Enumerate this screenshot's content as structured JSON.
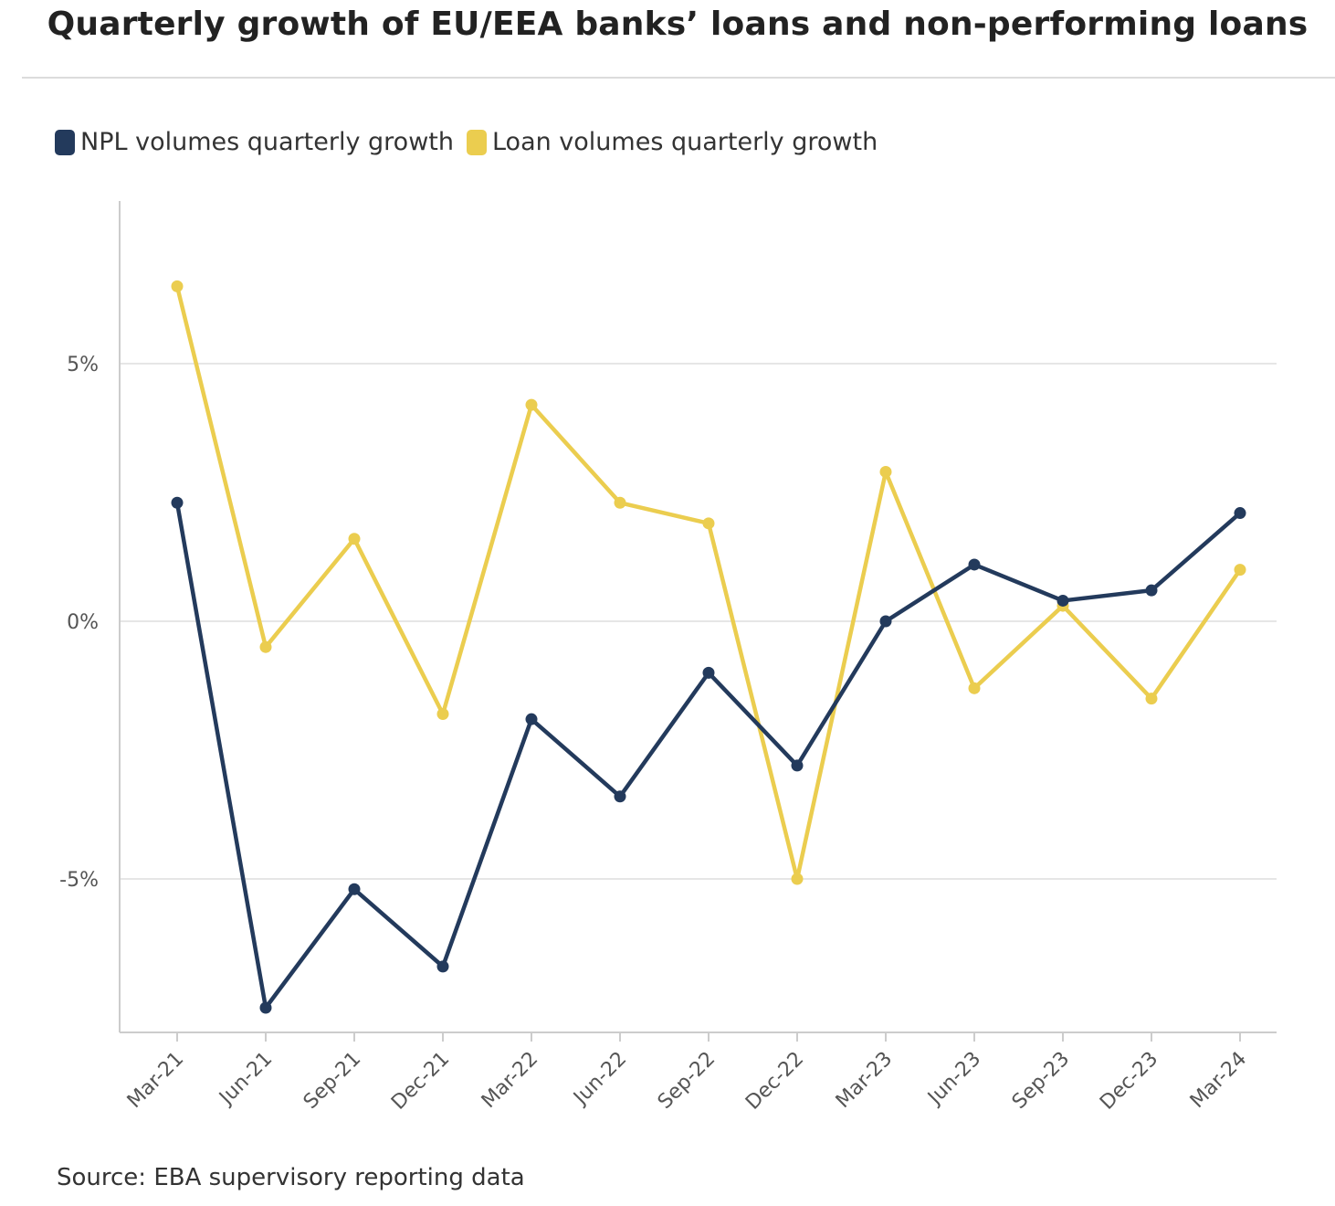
{
  "header": {
    "title": "Quarterly growth of EU/EEA banks’ loans and non-performing loans"
  },
  "footer": {
    "source": "Source: EBA supervisory reporting data"
  },
  "colors": {
    "npl": "#233a5c",
    "loan": "#ebcd4f",
    "grid": "#e6e6e6",
    "axis": "#cccccc"
  },
  "chart_data": {
    "type": "line",
    "title": "Quarterly growth of EU/EEA banks’ loans and non-performing loans",
    "xlabel": "",
    "ylabel": "",
    "categories": [
      "Mar-21",
      "Jun-21",
      "Sep-21",
      "Dec-21",
      "Mar-22",
      "Jun-22",
      "Sep-22",
      "Dec-22",
      "Mar-23",
      "Jun-23",
      "Sep-23",
      "Dec-23",
      "Mar-24"
    ],
    "y_ticks": [
      5,
      0,
      -5
    ],
    "y_tick_labels": [
      "5%",
      "0%",
      "-5%"
    ],
    "ylim": [
      -7.9,
      8.2
    ],
    "grid": "horizontal",
    "legend_position": "top-left",
    "series": [
      {
        "name": "NPL volumes quarterly growth",
        "color": "#233a5c",
        "values": [
          2.3,
          -7.5,
          -5.2,
          -6.7,
          -1.9,
          -3.4,
          -1.0,
          -2.8,
          0.0,
          1.1,
          0.4,
          0.6,
          2.1
        ]
      },
      {
        "name": "Loan volumes quarterly growth",
        "color": "#ebcd4f",
        "values": [
          6.5,
          -0.5,
          1.6,
          -1.8,
          4.2,
          2.3,
          1.9,
          -5.0,
          2.9,
          -1.3,
          0.3,
          -1.5,
          1.0
        ]
      }
    ]
  }
}
